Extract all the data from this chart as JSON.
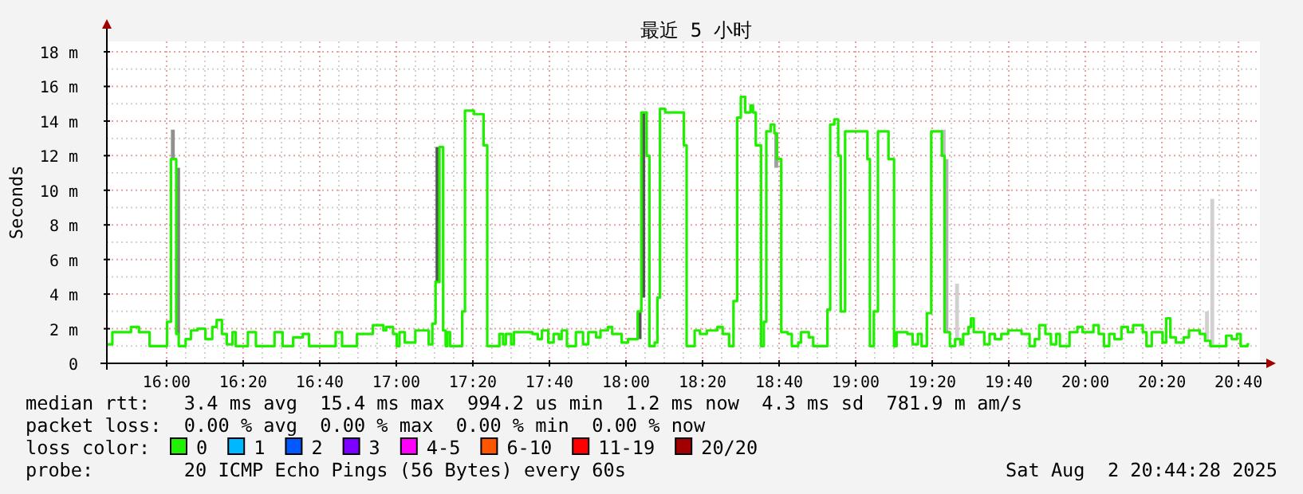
{
  "chart_data": {
    "type": "step",
    "title": "最近 5 小时",
    "ylabel": "Seconds",
    "legend_title": "loss color:",
    "legend": "bottom",
    "grid": true,
    "marker": "none",
    "line_style": "solid",
    "xlim": [
      15.74,
      20.76
    ],
    "xticks": [
      {
        "value": 16,
        "label": "16:00"
      },
      {
        "value": 16.3333,
        "label": "16:20"
      },
      {
        "value": 16.6667,
        "label": "16:40"
      },
      {
        "value": 17,
        "label": "17:00"
      },
      {
        "value": 17.3333,
        "label": "17:20"
      },
      {
        "value": 17.6667,
        "label": "17:40"
      },
      {
        "value": 18,
        "label": "18:00"
      },
      {
        "value": 18.3333,
        "label": "18:20"
      },
      {
        "value": 18.6667,
        "label": "18:40"
      },
      {
        "value": 19,
        "label": "19:00"
      },
      {
        "value": 19.3333,
        "label": "19:20"
      },
      {
        "value": 19.6667,
        "label": "19:40"
      },
      {
        "value": 20,
        "label": "20:00"
      },
      {
        "value": 20.3333,
        "label": "20:20"
      },
      {
        "value": 20.6667,
        "label": "20:40"
      }
    ],
    "ylim": [
      0,
      18.6
    ],
    "yticks": [
      0,
      {
        "value": 2,
        "label": "2 m"
      },
      {
        "value": 4,
        "label": "4 m"
      },
      {
        "value": 6,
        "label": "6 m"
      },
      {
        "value": 8,
        "label": "8 m"
      },
      {
        "value": 10,
        "label": "10 m"
      },
      {
        "value": 12,
        "label": "12 m"
      },
      {
        "value": 14,
        "label": "14 m"
      },
      {
        "value": 16,
        "label": "16 m"
      },
      {
        "value": 18,
        "label": "18 m"
      }
    ],
    "series": [
      {
        "type": "bar",
        "x": [
          16.019,
          16.042,
          17.171,
          18.051,
          18.067,
          18.646,
          19.375,
          19.387,
          19.433,
          20.521,
          20.544
        ],
        "base": [
          11.8,
          1.7,
          4.7,
          1.4,
          3.8,
          11.3,
          12.0,
          1.8,
          1.4,
          1.3,
          1.0
        ],
        "values": [
          1.7,
          9.6,
          7.8,
          1.6,
          10.7,
          2.0,
          1.5,
          10.0,
          3.2,
          1.7,
          8.5
        ],
        "colors": [
          "#909090",
          "#808080",
          "#555555",
          "#555555",
          "#555555",
          "#a0a0a0",
          "#c0c0c0",
          "#b0b0b0",
          "#d0d0d0",
          "#d0d0d0",
          "#d0d0d0"
        ]
      },
      {
        "name": "0",
        "color": "#20f000",
        "x": [
          15.741,
          15.764,
          15.845,
          15.88,
          15.926,
          16.002,
          16.019,
          16.042,
          16.053,
          16.083,
          16.106,
          16.134,
          16.169,
          16.199,
          16.218,
          16.241,
          16.262,
          16.287,
          16.301,
          16.354,
          16.389,
          16.47,
          16.505,
          16.551,
          16.593,
          16.62,
          16.736,
          16.764,
          16.829,
          16.898,
          16.944,
          16.956,
          16.986,
          17.002,
          17.014,
          17.037,
          17.083,
          17.141,
          17.157,
          17.171,
          17.188,
          17.204,
          17.215,
          17.222,
          17.234,
          17.287,
          17.299,
          17.338,
          17.38,
          17.396,
          17.449,
          17.465,
          17.477,
          17.5,
          17.512,
          17.593,
          17.616,
          17.634,
          17.662,
          17.685,
          17.708,
          17.72,
          17.743,
          17.782,
          17.813,
          17.836,
          17.87,
          17.889,
          17.921,
          17.94,
          17.981,
          18.009,
          18.051,
          18.067,
          18.09,
          18.102,
          18.125,
          18.137,
          18.148,
          18.171,
          18.252,
          18.264,
          18.299,
          18.322,
          18.352,
          18.398,
          18.421,
          18.449,
          18.468,
          18.484,
          18.5,
          18.519,
          18.542,
          18.553,
          18.565,
          18.588,
          18.6,
          18.611,
          18.63,
          18.646,
          18.657,
          18.676,
          18.704,
          18.722,
          18.75,
          18.762,
          18.796,
          18.815,
          18.877,
          18.889,
          18.907,
          18.924,
          18.935,
          18.954,
          19.051,
          19.062,
          19.079,
          19.097,
          19.143,
          19.167,
          19.178,
          19.225,
          19.248,
          19.271,
          19.287,
          19.31,
          19.329,
          19.375,
          19.387,
          19.41,
          19.433,
          19.456,
          19.468,
          19.491,
          19.502,
          19.514,
          19.56,
          19.583,
          19.606,
          19.634,
          19.664,
          19.722,
          19.757,
          19.78,
          19.799,
          19.826,
          19.85,
          19.873,
          19.889,
          19.931,
          19.965,
          19.988,
          20.035,
          20.058,
          20.081,
          20.104,
          20.127,
          20.157,
          20.185,
          20.208,
          20.25,
          20.266,
          20.289,
          20.336,
          20.352,
          20.37,
          20.394,
          20.428,
          20.451,
          20.498,
          20.521,
          20.544,
          20.613,
          20.637,
          20.66,
          20.676,
          20.706,
          20.713
        ],
        "values": [
          1.1,
          1.8,
          2.1,
          1.8,
          1.0,
          2.4,
          11.8,
          1.7,
          1.0,
          1.4,
          1.9,
          2.0,
          1.4,
          2.1,
          2.5,
          1.7,
          1.1,
          1.8,
          1.0,
          1.8,
          1.0,
          1.8,
          1.0,
          1.5,
          1.7,
          1.0,
          1.8,
          1.0,
          1.7,
          2.2,
          1.9,
          2.1,
          1.7,
          1.0,
          1.8,
          1.2,
          1.9,
          1.1,
          2.3,
          4.7,
          12.5,
          1.9,
          1.0,
          1.8,
          1.0,
          3.0,
          14.6,
          14.4,
          12.6,
          1.0,
          1.7,
          1.1,
          1.7,
          1.1,
          1.8,
          1.7,
          1.4,
          1.9,
          1.2,
          1.7,
          1.4,
          1.9,
          1.0,
          1.8,
          1.1,
          1.8,
          1.5,
          1.9,
          2.1,
          1.7,
          1.2,
          1.4,
          3.0,
          14.5,
          12.0,
          1.0,
          1.2,
          3.8,
          14.7,
          14.5,
          12.6,
          1.0,
          1.9,
          1.7,
          1.9,
          2.1,
          1.7,
          1.0,
          3.6,
          14.2,
          15.4,
          14.5,
          14.9,
          14.5,
          12.6,
          1.0,
          2.4,
          13.4,
          13.8,
          13.3,
          11.8,
          1.8,
          1.7,
          1.0,
          1.2,
          1.8,
          1.5,
          1.0,
          3.1,
          13.8,
          14.1,
          12.0,
          3.0,
          13.4,
          11.8,
          1.0,
          3.0,
          13.4,
          11.8,
          1.0,
          1.8,
          1.7,
          1.1,
          1.7,
          1.0,
          2.9,
          13.4,
          12.0,
          1.8,
          1.0,
          1.4,
          1.1,
          1.7,
          2.1,
          2.6,
          1.8,
          1.1,
          1.7,
          1.4,
          1.7,
          1.9,
          1.7,
          1.0,
          1.4,
          2.2,
          1.7,
          1.1,
          1.7,
          1.0,
          1.8,
          2.1,
          1.8,
          2.2,
          1.7,
          1.0,
          1.7,
          1.4,
          2.1,
          1.8,
          2.2,
          1.8,
          1.0,
          1.8,
          1.2,
          2.6,
          1.5,
          1.2,
          1.5,
          1.9,
          1.7,
          1.3,
          1.0,
          1.6,
          1.4,
          1.7,
          1.0,
          1.1,
          1.1
        ]
      },
      {
        "name": "1",
        "color": "#00b8ff"
      },
      {
        "name": "2",
        "color": "#0059ff"
      },
      {
        "name": "3",
        "color": "#7e00ff"
      },
      {
        "name": "4-5",
        "color": "#ff00ff"
      },
      {
        "name": "6-10",
        "color": "#ff5500"
      },
      {
        "name": "11-19",
        "color": "#ff0000"
      },
      {
        "name": "20/20",
        "color": "#a10000"
      }
    ],
    "annotations": [
      "median rtt:   3.4 ms avg  15.4 ms max  994.2 us min  1.2 ms now  4.3 ms sd  781.9 m am/s",
      "packet loss:  0.00 % avg  0.00 % max  0.00 % min  0.00 % now",
      "probe:        20 ICMP Echo Pings (56 Bytes) every 60s",
      "Sat Aug  2 20:44:28 2025"
    ]
  }
}
